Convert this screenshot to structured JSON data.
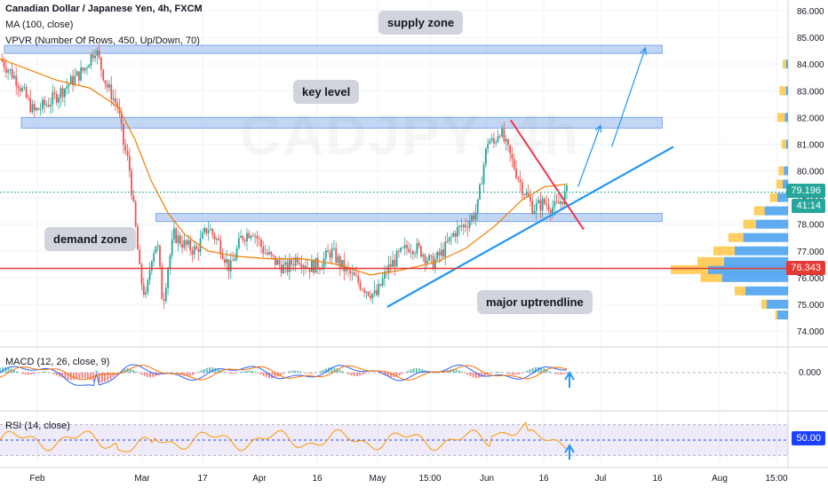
{
  "header": {
    "title": "Canadian Dollar / Japanese Yen, 4h, FXCM",
    "ma_label": "MA (100, close)",
    "vpvr_label": "VPVR (Number Of Rows, 450, Up/Down, 70)"
  },
  "watermark": "CADJPY, 4h",
  "annotations": {
    "supply_zone": "supply zone",
    "key_level": "key level",
    "demand_zone": "demand zone",
    "major_uptrendline": "major uptrendline"
  },
  "price_tags": {
    "last_price": "79.196",
    "countdown": "41:14",
    "horizontal_line": "76.343",
    "rsi_level": "50.00"
  },
  "macd": {
    "label": "MACD (12, 26, close, 9)",
    "zero_tick": "0.000"
  },
  "rsi": {
    "label": "RSI (14, close)"
  },
  "colors": {
    "up": "#26a69a",
    "down": "#ef5350",
    "ma": "#f57c00",
    "zone": "#7aa6e8",
    "uptrend": "#2196f3",
    "resistance": "#f23645",
    "horizontal": "#e53935",
    "vpvr_up": "#4ea3f1",
    "vpvr_down": "#ffc94c",
    "last_price_bg": "#26a69a",
    "rsi_line": "#ff9800",
    "rsi_band": "#7e57c2"
  },
  "chart_data": {
    "type": "candlestick",
    "symbol": "CADJPY",
    "timeframe": "4h",
    "price_axis": [
      74.0,
      75.0,
      76.0,
      77.0,
      78.0,
      79.0,
      80.0,
      81.0,
      82.0,
      83.0,
      84.0,
      85.0,
      86.0
    ],
    "price_axis_labels": [
      "74.000",
      "75.000",
      "76.000",
      "77.000",
      "78.000",
      "79.000",
      "80.000",
      "81.000",
      "82.000",
      "83.000",
      "84.000",
      "85.000",
      "86.000"
    ],
    "time_axis_labels": [
      "Feb",
      "Mar",
      "17",
      "Apr",
      "16",
      "May",
      "15:00",
      "Jun",
      "16",
      "Jul",
      "16",
      "Aug",
      "15:00"
    ],
    "close_path": [
      [
        0,
        84.2
      ],
      [
        3,
        83.4
      ],
      [
        6,
        82.2
      ],
      [
        9,
        82.6
      ],
      [
        12,
        83.2
      ],
      [
        15,
        83.8
      ],
      [
        17,
        84.6
      ],
      [
        19,
        83.2
      ],
      [
        21,
        82.4
      ],
      [
        22,
        81.0
      ],
      [
        23,
        80.2
      ],
      [
        24,
        78.2
      ],
      [
        25,
        76.0
      ],
      [
        26,
        75.2
      ],
      [
        27,
        76.8
      ],
      [
        28,
        77.4
      ],
      [
        29,
        75.0
      ],
      [
        30,
        76.5
      ],
      [
        31,
        77.6
      ],
      [
        33,
        77.2
      ],
      [
        35,
        77.0
      ],
      [
        37,
        77.9
      ],
      [
        39,
        77.3
      ],
      [
        41,
        76.3
      ],
      [
        43,
        77.5
      ],
      [
        45,
        77.8
      ],
      [
        47,
        77.0
      ],
      [
        49,
        76.6
      ],
      [
        51,
        76.3
      ],
      [
        53,
        76.8
      ],
      [
        55,
        76.4
      ],
      [
        57,
        76.5
      ],
      [
        59,
        77.0
      ],
      [
        61,
        76.4
      ],
      [
        63,
        76.0
      ],
      [
        65,
        75.6
      ],
      [
        67,
        75.3
      ],
      [
        69,
        76.3
      ],
      [
        71,
        76.8
      ],
      [
        73,
        77.2
      ],
      [
        75,
        77.0
      ],
      [
        77,
        76.5
      ],
      [
        79,
        77.0
      ],
      [
        81,
        77.7
      ],
      [
        83,
        78.0
      ],
      [
        85,
        78.5
      ],
      [
        86,
        80.0
      ],
      [
        87,
        81.2
      ],
      [
        88,
        81.0
      ],
      [
        89,
        81.6
      ],
      [
        90,
        81.0
      ],
      [
        91,
        80.5
      ],
      [
        93,
        79.4
      ],
      [
        95,
        78.6
      ],
      [
        97,
        78.8
      ],
      [
        99,
        78.6
      ],
      [
        101,
        79.2
      ]
    ],
    "ma_100": [
      [
        0,
        84.2
      ],
      [
        10,
        83.4
      ],
      [
        16,
        83.1
      ],
      [
        21,
        82.4
      ],
      [
        24,
        81.2
      ],
      [
        27,
        79.6
      ],
      [
        30,
        78.4
      ],
      [
        33,
        77.6
      ],
      [
        37,
        77.0
      ],
      [
        42,
        76.8
      ],
      [
        48,
        76.7
      ],
      [
        54,
        76.7
      ],
      [
        60,
        76.5
      ],
      [
        66,
        76.1
      ],
      [
        72,
        76.3
      ],
      [
        78,
        76.6
      ],
      [
        83,
        77.1
      ],
      [
        88,
        77.9
      ],
      [
        93,
        78.9
      ],
      [
        97,
        79.4
      ],
      [
        101,
        79.5
      ]
    ],
    "zones": [
      {
        "name": "supply zone",
        "low": 84.4,
        "high": 84.7,
        "x_start": 0,
        "x_end": 118
      },
      {
        "name": "key level",
        "low": 81.6,
        "high": 82.0,
        "x_start": 3,
        "x_end": 118
      },
      {
        "name": "demand zone",
        "low": 78.1,
        "high": 78.4,
        "x_start": 27,
        "x_end": 118
      }
    ],
    "major_uptrendline": {
      "start": [
        69,
        74.9
      ],
      "end": [
        120,
        80.9
      ]
    },
    "resistance_line": {
      "start": [
        91,
        81.9
      ],
      "end": [
        104,
        77.8
      ]
    },
    "horizontal_line": 76.343,
    "projected_arrows": [
      [
        [
          103,
          79.4
        ],
        [
          107,
          81.7
        ]
      ],
      [
        [
          109,
          80.9
        ],
        [
          115,
          84.6
        ]
      ]
    ],
    "last_price": 79.196,
    "vpvr": [
      [
        74.6,
        0.1,
        0.02
      ],
      [
        75.0,
        0.2,
        0.05
      ],
      [
        75.5,
        0.4,
        0.1
      ],
      [
        76.0,
        0.62,
        0.2
      ],
      [
        76.3,
        0.75,
        0.35
      ],
      [
        76.6,
        0.6,
        0.25
      ],
      [
        77.0,
        0.5,
        0.2
      ],
      [
        77.5,
        0.42,
        0.14
      ],
      [
        78.0,
        0.3,
        0.12
      ],
      [
        78.5,
        0.22,
        0.1
      ],
      [
        79.0,
        0.1,
        0.07
      ],
      [
        79.5,
        0.05,
        0.06
      ],
      [
        80.0,
        0.04,
        0.05
      ],
      [
        81.0,
        0.02,
        0.04
      ],
      [
        82.0,
        0.03,
        0.07
      ],
      [
        83.0,
        0.02,
        0.06
      ],
      [
        84.0,
        0.02,
        0.03
      ]
    ],
    "macd": {
      "zero_tick": 0.0,
      "range": [
        -1.2,
        1.0
      ]
    },
    "rsi": {
      "levels": [
        30,
        50,
        70
      ]
    }
  }
}
